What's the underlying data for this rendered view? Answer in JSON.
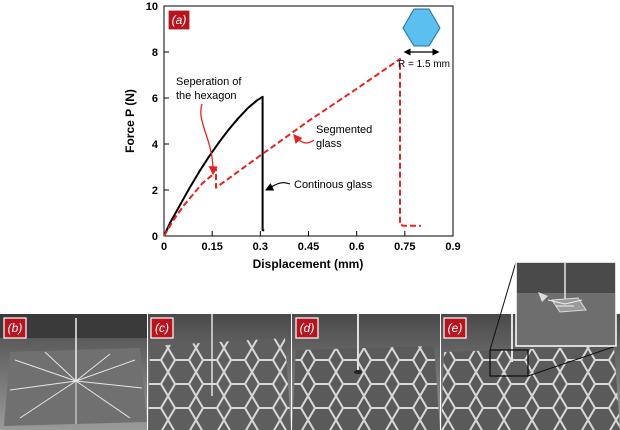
{
  "chart_data": {
    "type": "line",
    "panel_label": "(a)",
    "xlabel": "Displacement (mm)",
    "ylabel": "Force  P (N)",
    "xlim": [
      0,
      0.9
    ],
    "ylim": [
      0,
      10
    ],
    "x_ticks": [
      "0",
      "0.15",
      "0.3",
      "0.45",
      "0.6",
      "0.75",
      "0.9"
    ],
    "y_ticks": [
      "0",
      "2",
      "4",
      "6",
      "8",
      "10"
    ],
    "grid": false,
    "series": [
      {
        "name": "Continous glass",
        "color": "#000000",
        "style": "solid",
        "x": [
          0,
          0.02,
          0.05,
          0.08,
          0.11,
          0.14,
          0.17,
          0.2,
          0.23,
          0.26,
          0.29,
          0.307,
          0.307,
          0.312
        ],
        "y": [
          0,
          0.6,
          1.35,
          2.1,
          2.8,
          3.45,
          4.05,
          4.6,
          5.1,
          5.55,
          5.9,
          6.05,
          0.25,
          0.25
        ]
      },
      {
        "name": "Segmented glass",
        "color": "#e8231f",
        "style": "dashed",
        "x": [
          0,
          0.03,
          0.06,
          0.09,
          0.12,
          0.15,
          0.158,
          0.162,
          0.162,
          0.3,
          0.45,
          0.6,
          0.72,
          0.735,
          0.735,
          0.745,
          0.8
        ],
        "y": [
          0,
          0.7,
          1.3,
          1.8,
          2.3,
          2.65,
          2.85,
          2.9,
          2.1,
          3.5,
          5.0,
          6.4,
          7.55,
          7.7,
          0.5,
          0.45,
          0.45
        ]
      }
    ],
    "annotations": [
      {
        "text": "Seperation of the hexagon",
        "x": 0.162,
        "y": 2.9
      },
      {
        "text": "Segmented glass",
        "x": 0.42,
        "y": 4.5
      },
      {
        "text": "Continous glass",
        "x": 0.307,
        "y": 2.0
      }
    ],
    "inset": {
      "text": "R = 1.5 mm",
      "shape": "hexagon",
      "color": "#5bbfef"
    }
  },
  "photos": [
    {
      "label": "(b)",
      "description_pattern": "cracked-plate"
    },
    {
      "label": "(c)",
      "description_pattern": "hexagon-grid"
    },
    {
      "label": "(d)",
      "description_pattern": "hexagon-grid-indenter"
    },
    {
      "label": "(e)",
      "description_pattern": "hexagon-grid-zoom"
    }
  ],
  "colors": {
    "accent": "#b8141e",
    "photo_bg": "#8a8a8a"
  }
}
